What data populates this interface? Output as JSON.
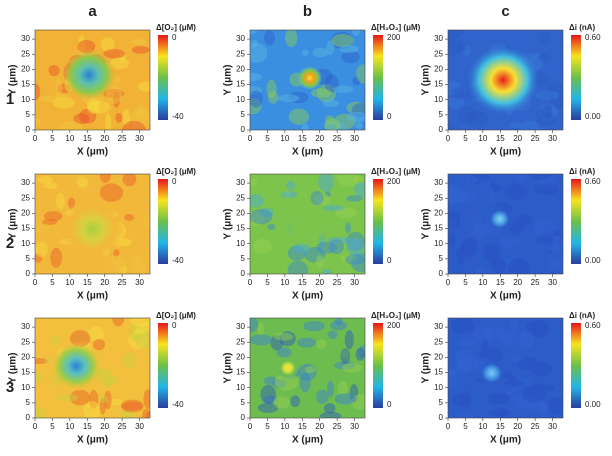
{
  "columns": [
    "a",
    "b",
    "c"
  ],
  "rows": [
    "1",
    "2",
    "3"
  ],
  "axes": {
    "xlabel": "X (μm)",
    "ylabel": "Y (μm)",
    "lim": [
      0,
      33
    ],
    "ticks": [
      0,
      5,
      10,
      15,
      20,
      25,
      30
    ]
  },
  "colorbars": [
    {
      "title": "Δ[O₂] (μM)",
      "top": "0",
      "bottom": "-40"
    },
    {
      "title": "Δ[H₂O₂] (μM)",
      "top": "200",
      "bottom": "0"
    },
    {
      "title": "Δi (nA)",
      "top": "0.60",
      "bottom": "0.00"
    }
  ]
}
